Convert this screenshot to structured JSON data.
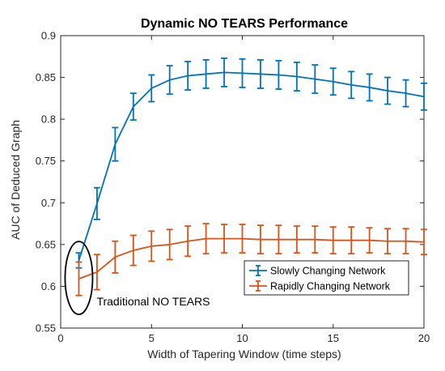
{
  "chart_data": {
    "type": "line",
    "title": "Dynamic NO TEARS Performance",
    "xlabel": "Width of Tapering Window (time steps)",
    "ylabel": "AUC of Deduced Graph",
    "xlim": [
      0,
      20
    ],
    "ylim": [
      0.55,
      0.9
    ],
    "xticks": [
      0,
      5,
      10,
      15,
      20
    ],
    "yticks": [
      0.55,
      0.6,
      0.65,
      0.7,
      0.75,
      0.8,
      0.85,
      0.9
    ],
    "xtick_labels": [
      "0",
      "5",
      "10",
      "15",
      "20"
    ],
    "ytick_labels": [
      "0.55",
      "0.6",
      "0.65",
      "0.7",
      "0.75",
      "0.8",
      "0.85",
      "0.9"
    ],
    "grid": false,
    "legend_position": "bottom-right",
    "x": [
      1,
      2,
      3,
      4,
      5,
      6,
      7,
      8,
      9,
      10,
      11,
      12,
      13,
      14,
      15,
      16,
      17,
      18,
      19,
      20
    ],
    "series": [
      {
        "name": "Slowly Changing Network",
        "color": "#0072BD",
        "values": [
          0.631,
          0.699,
          0.77,
          0.815,
          0.837,
          0.847,
          0.852,
          0.854,
          0.856,
          0.855,
          0.854,
          0.853,
          0.851,
          0.848,
          0.845,
          0.841,
          0.838,
          0.834,
          0.831,
          0.827
        ],
        "errors": [
          0.009,
          0.019,
          0.02,
          0.016,
          0.016,
          0.017,
          0.017,
          0.017,
          0.017,
          0.017,
          0.017,
          0.017,
          0.017,
          0.017,
          0.016,
          0.016,
          0.016,
          0.016,
          0.016,
          0.016
        ]
      },
      {
        "name": "Rapidly Changing Network",
        "color": "#D95319",
        "values": [
          0.609,
          0.617,
          0.635,
          0.643,
          0.648,
          0.65,
          0.654,
          0.657,
          0.657,
          0.657,
          0.656,
          0.656,
          0.656,
          0.656,
          0.655,
          0.655,
          0.655,
          0.654,
          0.654,
          0.653
        ],
        "errors": [
          0.02,
          0.021,
          0.019,
          0.018,
          0.018,
          0.018,
          0.018,
          0.018,
          0.017,
          0.017,
          0.017,
          0.017,
          0.016,
          0.016,
          0.016,
          0.016,
          0.015,
          0.015,
          0.015,
          0.015
        ]
      }
    ],
    "annotations": [
      {
        "text": "Traditional NO TEARS",
        "x": 1,
        "y": 0.61,
        "shape": "ellipse"
      }
    ]
  }
}
